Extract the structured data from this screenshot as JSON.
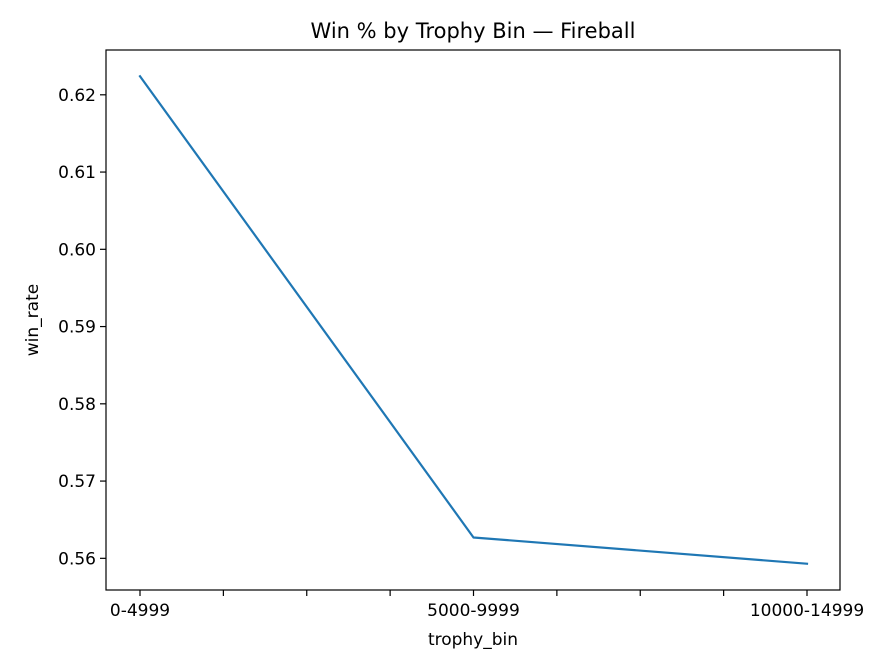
{
  "chart_data": {
    "type": "line",
    "title": "Win % by Trophy Bin — Fireball",
    "xlabel": "trophy_bin",
    "ylabel": "win_rate",
    "categories": [
      "0-4999",
      "5000-9999",
      "10000-14999"
    ],
    "series": [
      {
        "values": [
          0.6224,
          0.5627,
          0.5593
        ],
        "color": "#1f77b4"
      }
    ],
    "ylim": [
      0.5559,
      0.6258
    ],
    "yticks": [
      "0.56",
      "0.57",
      "0.58",
      "0.59",
      "0.60",
      "0.61",
      "0.62"
    ],
    "grid": false,
    "legend": "none"
  }
}
